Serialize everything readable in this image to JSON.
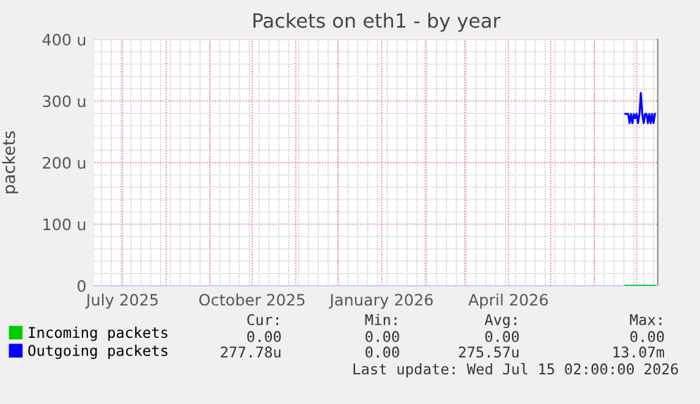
{
  "chart_data": {
    "type": "line",
    "title": "Packets on eth1 - by year",
    "ylabel": "packets",
    "x": [
      "2026-06-23",
      "2026-06-24",
      "2026-06-25",
      "2026-06-26",
      "2026-06-27",
      "2026-06-28",
      "2026-06-29",
      "2026-06-30",
      "2026-07-01",
      "2026-07-02",
      "2026-07-03",
      "2026-07-04",
      "2026-07-05",
      "2026-07-06",
      "2026-07-07",
      "2026-07-08",
      "2026-07-09",
      "2026-07-10",
      "2026-07-11",
      "2026-07-12",
      "2026-07-13",
      "2026-07-14"
    ],
    "series": [
      {
        "name": "Incoming packets",
        "color": "#00cc00",
        "values": [
          0,
          0,
          0,
          0,
          0,
          0,
          0,
          0,
          0,
          0,
          0,
          0,
          0,
          0,
          0,
          0,
          0,
          0,
          0,
          0,
          0,
          0
        ]
      },
      {
        "name": "Outgoing packets",
        "color": "#0000ff",
        "values": [
          279,
          279,
          279,
          264,
          279,
          264,
          279,
          272,
          279,
          264,
          279,
          313,
          279,
          264,
          279,
          279,
          264,
          279,
          264,
          279,
          264,
          279
        ]
      }
    ],
    "xlim": [
      "2025-06-11",
      "2026-07-16"
    ],
    "xticks": [
      {
        "value": "2025-07-01",
        "label": "July 2025"
      },
      {
        "value": "2025-10-01",
        "label": "October 2025"
      },
      {
        "value": "2026-01-01",
        "label": "January 2026"
      },
      {
        "value": "2026-04-01",
        "label": "April 2026"
      }
    ],
    "ylim": [
      0,
      400
    ],
    "yticks": [
      {
        "value": 0,
        "label": "0"
      },
      {
        "value": 100,
        "label": "100 u"
      },
      {
        "value": 200,
        "label": "200 u"
      },
      {
        "value": 300,
        "label": "300 u"
      },
      {
        "value": 400,
        "label": "400 u"
      }
    ],
    "grid": true,
    "legend": "bottom left",
    "marker": "none",
    "line_style": "solid",
    "annotations": [
      "Cur:",
      "Min:",
      "Avg:",
      "Max:",
      "0.00",
      "0.00",
      "0.00",
      "0.00",
      "277.78u",
      "0.00",
      "275.57u",
      "13.07m",
      "Last update: Wed Jul 15 02:00:00 2026"
    ]
  }
}
